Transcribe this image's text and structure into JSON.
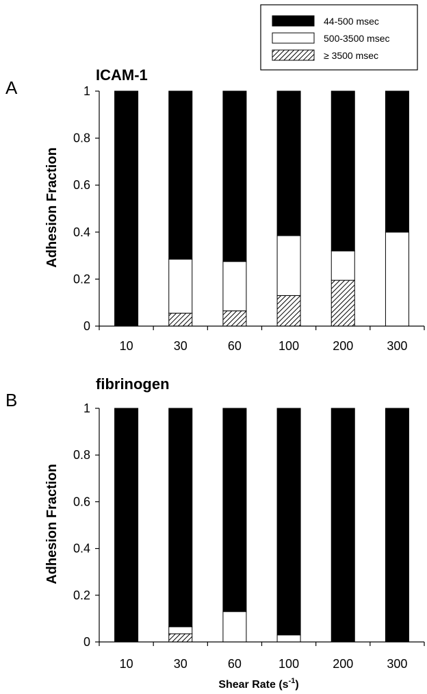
{
  "legend": {
    "entries": [
      {
        "label": "44-500 msec",
        "fill": "solid",
        "color": "#000000"
      },
      {
        "label": "500-3500 msec",
        "fill": "open",
        "color": "#ffffff"
      },
      {
        "label": "≥ 3500 msec",
        "fill": "hatched",
        "color": "#000000"
      }
    ]
  },
  "x_axis_title": {
    "main": "Shear Rate (s",
    "sup": "-1",
    "close": ")"
  },
  "chart_data": [
    {
      "type": "bar",
      "stacked": true,
      "panel_letter": "A",
      "title": "ICAM-1",
      "xlabel": "",
      "ylabel": "Adhesion Fraction",
      "ylim": [
        0,
        1
      ],
      "yticks": [
        "0",
        "0.2",
        "0.4",
        "0.6",
        "0.8",
        "1"
      ],
      "categories": [
        "10",
        "30",
        "60",
        "100",
        "200",
        "300"
      ],
      "series": [
        {
          "name": "≥ 3500 msec",
          "values": [
            0,
            0.055,
            0.065,
            0.13,
            0.195,
            0
          ]
        },
        {
          "name": "500-3500 msec",
          "values": [
            0,
            0.23,
            0.21,
            0.255,
            0.125,
            0.4
          ]
        },
        {
          "name": "44-500 msec",
          "values": [
            1,
            0.715,
            0.725,
            0.615,
            0.68,
            0.6
          ]
        }
      ]
    },
    {
      "type": "bar",
      "stacked": true,
      "panel_letter": "B",
      "title": "fibrinogen",
      "xlabel": "Shear Rate (s-1)",
      "ylabel": "Adhesion Fraction",
      "ylim": [
        0,
        1
      ],
      "yticks": [
        "0",
        "0.2",
        "0.4",
        "0.6",
        "0.8",
        "1"
      ],
      "categories": [
        "10",
        "30",
        "60",
        "100",
        "200",
        "300"
      ],
      "series": [
        {
          "name": "≥ 3500 msec",
          "values": [
            0,
            0.035,
            0,
            0,
            0,
            0
          ]
        },
        {
          "name": "500-3500 msec",
          "values": [
            0,
            0.03,
            0.13,
            0.03,
            0,
            0
          ]
        },
        {
          "name": "44-500 msec",
          "values": [
            1,
            0.935,
            0.87,
            0.97,
            1,
            1
          ]
        }
      ]
    }
  ]
}
